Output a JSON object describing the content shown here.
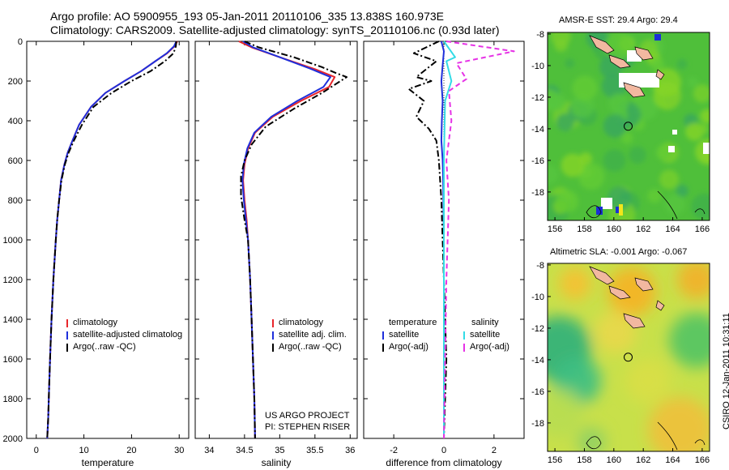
{
  "titles": {
    "line1": "Argo profile: AO 5900955_193 05-Jan-2011 20110106_335 13.838S 160.973E",
    "line2": "Climatology: CARS2009. Satellite-adjusted climatology: synTS_20110106.nc (0.93d later)"
  },
  "credits": {
    "project": "US ARGO PROJECT",
    "pi": "PI: STEPHEN RISER"
  },
  "stamp": "CSIRO 12-Jan-2011 10:31:11",
  "colors": {
    "climatology": "#e8262b",
    "satellite": "#1f2fdb",
    "argo": "#000000",
    "satellite_salinity": "#33dbe6",
    "argo_salinity": "#e633e6"
  },
  "chart_data": [
    {
      "id": "temperature",
      "type": "line",
      "xlabel": "temperature",
      "xlim": [
        -2,
        32
      ],
      "ylim": [
        2000,
        0
      ],
      "xticks": [
        0,
        10,
        20,
        30
      ],
      "yticks": [
        0,
        200,
        400,
        600,
        800,
        1000,
        1200,
        1400,
        1600,
        1800,
        2000
      ],
      "legend": {
        "position": "lower-right",
        "entries": [
          "climatology",
          "satellite-adjusted climatolog",
          "Argo(..raw -QC)"
        ]
      },
      "series": [
        {
          "name": "climatology",
          "color": "#e8262b",
          "style": "solid",
          "x": [
            29.6,
            29.0,
            27.5,
            25.0,
            22.0,
            18.5,
            14.5,
            11.5,
            9.0,
            7.6,
            6.6,
            5.9,
            5.2,
            4.8,
            4.4,
            4.1,
            3.6,
            3.2,
            2.9,
            2.7,
            2.5,
            2.3
          ],
          "y": [
            0,
            25,
            60,
            100,
            150,
            200,
            260,
            330,
            420,
            500,
            560,
            620,
            700,
            800,
            900,
            1000,
            1200,
            1400,
            1600,
            1750,
            1900,
            2000
          ]
        },
        {
          "name": "satellite-adjusted climatolog",
          "color": "#1f2fdb",
          "style": "solid",
          "x": [
            29.4,
            28.9,
            27.4,
            25.0,
            22.0,
            18.5,
            14.5,
            11.5,
            9.0,
            7.6,
            6.6,
            5.9,
            5.2,
            4.8,
            4.4,
            4.1,
            3.6,
            3.2,
            2.9,
            2.7,
            2.5,
            2.3
          ],
          "y": [
            0,
            25,
            60,
            100,
            150,
            200,
            260,
            330,
            420,
            500,
            560,
            620,
            700,
            800,
            900,
            1000,
            1200,
            1400,
            1600,
            1750,
            1900,
            2000
          ]
        },
        {
          "name": "Argo(..raw -QC)",
          "color": "#000000",
          "style": "dashdot",
          "x": [
            29.4,
            29.3,
            28.8,
            27.0,
            24.0,
            20.0,
            15.8,
            12.0,
            9.6,
            7.9,
            6.8,
            6.0,
            5.3,
            4.8,
            4.4,
            4.1,
            3.6,
            3.2,
            2.9,
            2.7,
            2.5,
            2.3
          ],
          "y": [
            0,
            25,
            60,
            100,
            150,
            200,
            260,
            330,
            420,
            500,
            560,
            620,
            700,
            800,
            900,
            1000,
            1200,
            1400,
            1600,
            1750,
            1900,
            2000
          ]
        }
      ]
    },
    {
      "id": "salinity",
      "type": "line",
      "xlabel": "salinity",
      "xlim": [
        33.8,
        36.1
      ],
      "ylim": [
        2000,
        0
      ],
      "xticks": [
        34,
        34.5,
        35,
        35.5,
        36
      ],
      "yticks": [
        0,
        200,
        400,
        600,
        800,
        1000,
        1200,
        1400,
        1600,
        1800,
        2000
      ],
      "legend": {
        "position": "lower-right",
        "entries": [
          "climatology",
          "satellite adj. clim.",
          "Argo(..raw -QC)"
        ]
      },
      "series": [
        {
          "name": "climatology",
          "color": "#e8262b",
          "style": "solid",
          "x": [
            34.42,
            34.6,
            35.0,
            35.5,
            35.78,
            35.7,
            35.3,
            34.9,
            34.65,
            34.55,
            34.5,
            34.48,
            34.5,
            34.53,
            34.55,
            34.58,
            34.6,
            34.62,
            34.64,
            34.65
          ],
          "y": [
            0,
            30,
            80,
            140,
            180,
            230,
            300,
            380,
            460,
            540,
            620,
            700,
            800,
            900,
            1000,
            1200,
            1400,
            1600,
            1800,
            2000
          ]
        },
        {
          "name": "satellite adj. clim.",
          "color": "#1f2fdb",
          "style": "solid",
          "x": [
            34.48,
            34.62,
            35.0,
            35.45,
            35.72,
            35.62,
            35.25,
            34.88,
            34.64,
            34.54,
            34.49,
            34.47,
            34.49,
            34.52,
            34.55,
            34.58,
            34.6,
            34.62,
            34.64,
            34.65
          ],
          "y": [
            0,
            30,
            80,
            140,
            180,
            230,
            300,
            380,
            460,
            540,
            620,
            700,
            800,
            900,
            1000,
            1200,
            1400,
            1600,
            1800,
            2000
          ]
        },
        {
          "name": "Argo(..raw -QC)",
          "color": "#000000",
          "style": "dashdot",
          "x": [
            34.5,
            34.7,
            35.2,
            35.6,
            35.8,
            35.95,
            35.6,
            35.2,
            34.8,
            34.6,
            34.5,
            34.45,
            34.45,
            34.5,
            34.55,
            34.58,
            34.6,
            34.62,
            34.64,
            34.65
          ],
          "y": [
            0,
            30,
            80,
            130,
            160,
            180,
            260,
            340,
            430,
            520,
            600,
            680,
            780,
            900,
            1000,
            1200,
            1400,
            1600,
            1800,
            2000
          ]
        }
      ]
    },
    {
      "id": "difference",
      "type": "line",
      "xlabel": "difference from climatology",
      "xlim": [
        -3.2,
        3.2
      ],
      "ylim": [
        2000,
        0
      ],
      "xticks": [
        -2,
        0,
        2
      ],
      "yticks": [
        0,
        200,
        400,
        600,
        800,
        1000,
        1200,
        1400,
        1600,
        1800,
        2000
      ],
      "legend": {
        "position": "lower-center",
        "temperature_header": "temperature",
        "salinity_header": "salinity",
        "temperature_entries": [
          "satellite",
          "Argo(-adj)"
        ],
        "salinity_entries": [
          "satellite",
          "Argo(-adj)"
        ]
      },
      "series": [
        {
          "name": "satellite",
          "quantity": "temperature",
          "color": "#1f2fdb",
          "style": "solid",
          "x": [
            -0.1,
            0.0,
            -0.05,
            -0.1,
            -0.05,
            -0.08,
            -0.1,
            -0.05,
            -0.03,
            -0.02,
            0.0,
            0.0,
            0.0,
            0.0
          ],
          "y": [
            0,
            50,
            120,
            200,
            300,
            400,
            500,
            600,
            700,
            800,
            1000,
            1400,
            1800,
            2000
          ]
        },
        {
          "name": "Argo(-adj)",
          "quantity": "temperature",
          "color": "#000000",
          "style": "dashdot",
          "x": [
            -0.2,
            -1.2,
            -0.3,
            -1.1,
            -0.5,
            -1.4,
            -0.8,
            -1.1,
            -0.6,
            -0.3,
            -0.2,
            -0.1,
            0.0,
            0.1,
            0.0
          ],
          "y": [
            0,
            60,
            100,
            180,
            200,
            240,
            300,
            380,
            440,
            500,
            600,
            800,
            1200,
            1600,
            2000
          ]
        },
        {
          "name": "satellite",
          "quantity": "salinity",
          "color": "#33dbe6",
          "style": "solid",
          "x": [
            0.0,
            0.45,
            0.1,
            0.3,
            0.05,
            0.0,
            0.0,
            0.0,
            0.0
          ],
          "y": [
            0,
            80,
            100,
            200,
            300,
            600,
            1000,
            1500,
            2000
          ]
        },
        {
          "name": "Argo(-adj)",
          "quantity": "salinity",
          "color": "#e633e6",
          "style": "dashed",
          "x": [
            0.1,
            2.8,
            0.5,
            0.9,
            0.2,
            0.3,
            0.1,
            0.2,
            0.1,
            0.0
          ],
          "y": [
            0,
            50,
            110,
            190,
            250,
            400,
            600,
            800,
            1200,
            2000
          ]
        }
      ]
    },
    {
      "id": "sst_map",
      "type": "heatmap",
      "title": "AMSR-E SST: 29.4 Argo: 29.4",
      "xlim": [
        155.5,
        166.5
      ],
      "ylim": [
        -19.8,
        -7.9
      ],
      "xticks": [
        156,
        158,
        160,
        162,
        164,
        166
      ],
      "yticks": [
        -8,
        -10,
        -12,
        -14,
        -16,
        -18
      ],
      "marker": {
        "lon": 160.973,
        "lat": -13.838
      }
    },
    {
      "id": "sla_map",
      "type": "heatmap",
      "title": "Altimetric SLA: -0.001 Argo: -0.067",
      "xlim": [
        155.5,
        166.5
      ],
      "ylim": [
        -19.8,
        -7.9
      ],
      "xticks": [
        156,
        158,
        160,
        162,
        164,
        166
      ],
      "yticks": [
        -8,
        -10,
        -12,
        -14,
        -16,
        -18
      ],
      "marker": {
        "lon": 160.973,
        "lat": -13.838
      }
    }
  ]
}
